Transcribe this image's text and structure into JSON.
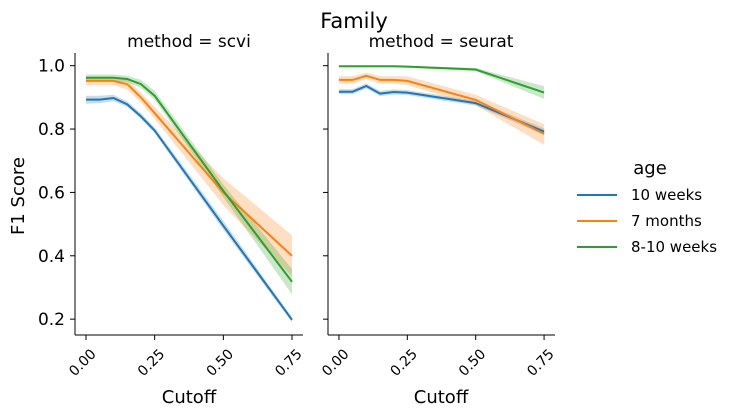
{
  "chart_data": {
    "type": "line",
    "suptitle": "Family",
    "ylabel": "F1 Score",
    "ylim": [
      0.15,
      1.04
    ],
    "yticks": [
      0.2,
      0.4,
      0.6,
      0.8,
      1.0
    ],
    "ytick_labels": [
      "0.2",
      "0.4",
      "0.6",
      "0.8",
      "1.0"
    ],
    "xlim": [
      -0.04,
      0.79
    ],
    "xticks": [
      0.0,
      0.25,
      0.5,
      0.75
    ],
    "xtick_labels": [
      "0.00",
      "0.25",
      "0.50",
      "0.75"
    ],
    "legend": {
      "title": "age",
      "placement": "right",
      "entries": [
        {
          "name": "10 weeks",
          "color": "#1f77b4"
        },
        {
          "name": "7 months",
          "color": "#ff7f0e"
        },
        {
          "name": "8-10 weeks",
          "color": "#2ca02c"
        }
      ]
    },
    "panels": [
      {
        "title": "method = scvi",
        "xlabel": "Cutoff",
        "series": [
          {
            "name": "10 weeks",
            "color": "#1f77b4",
            "x": [
              0.0,
              0.05,
              0.1,
              0.15,
              0.2,
              0.25,
              0.5,
              0.75
            ],
            "y": [
              0.893,
              0.893,
              0.898,
              0.878,
              0.84,
              0.795,
              0.495,
              0.198
            ],
            "lower": [
              0.88,
              0.882,
              0.888,
              0.87,
              0.832,
              0.787,
              0.482,
              0.19
            ],
            "upper": [
              0.905,
              0.905,
              0.908,
              0.888,
              0.85,
              0.805,
              0.51,
              0.206
            ]
          },
          {
            "name": "7 months",
            "color": "#ff7f0e",
            "x": [
              0.0,
              0.05,
              0.1,
              0.15,
              0.2,
              0.25,
              0.5,
              0.75
            ],
            "y": [
              0.952,
              0.952,
              0.952,
              0.942,
              0.9,
              0.85,
              0.6,
              0.4
            ],
            "lower": [
              0.938,
              0.938,
              0.938,
              0.925,
              0.884,
              0.832,
              0.56,
              0.335
            ],
            "upper": [
              0.965,
              0.965,
              0.965,
              0.958,
              0.915,
              0.87,
              0.645,
              0.465
            ]
          },
          {
            "name": "8-10 weeks",
            "color": "#2ca02c",
            "x": [
              0.0,
              0.05,
              0.1,
              0.15,
              0.2,
              0.25,
              0.5,
              0.75
            ],
            "y": [
              0.962,
              0.962,
              0.962,
              0.958,
              0.942,
              0.905,
              0.605,
              0.318
            ],
            "lower": [
              0.952,
              0.952,
              0.952,
              0.948,
              0.93,
              0.892,
              0.585,
              0.278
            ],
            "upper": [
              0.972,
              0.972,
              0.972,
              0.968,
              0.955,
              0.92,
              0.625,
              0.358
            ]
          }
        ]
      },
      {
        "title": "method = seurat",
        "xlabel": "Cutoff",
        "series": [
          {
            "name": "10 weeks",
            "color": "#1f77b4",
            "x": [
              0.0,
              0.05,
              0.1,
              0.15,
              0.2,
              0.25,
              0.5,
              0.75
            ],
            "y": [
              0.918,
              0.918,
              0.936,
              0.912,
              0.917,
              0.915,
              0.882,
              0.792
            ],
            "lower": [
              0.91,
              0.91,
              0.928,
              0.904,
              0.909,
              0.907,
              0.874,
              0.782
            ],
            "upper": [
              0.926,
              0.926,
              0.944,
              0.92,
              0.925,
              0.923,
              0.89,
              0.802
            ]
          },
          {
            "name": "7 months",
            "color": "#ff7f0e",
            "x": [
              0.0,
              0.05,
              0.1,
              0.15,
              0.2,
              0.25,
              0.5,
              0.75
            ],
            "y": [
              0.955,
              0.955,
              0.968,
              0.955,
              0.955,
              0.952,
              0.892,
              0.785
            ],
            "lower": [
              0.943,
              0.943,
              0.958,
              0.943,
              0.943,
              0.938,
              0.875,
              0.75
            ],
            "upper": [
              0.967,
              0.967,
              0.978,
              0.967,
              0.967,
              0.966,
              0.908,
              0.815
            ]
          },
          {
            "name": "8-10 weeks",
            "color": "#2ca02c",
            "x": [
              0.0,
              0.05,
              0.1,
              0.15,
              0.2,
              0.25,
              0.5,
              0.75
            ],
            "y": [
              0.998,
              0.998,
              0.998,
              0.998,
              0.998,
              0.997,
              0.988,
              0.915
            ],
            "lower": [
              0.995,
              0.995,
              0.995,
              0.995,
              0.995,
              0.994,
              0.983,
              0.895
            ],
            "upper": [
              1.0,
              1.0,
              1.0,
              1.0,
              1.0,
              1.0,
              0.993,
              0.935
            ]
          }
        ]
      }
    ]
  }
}
